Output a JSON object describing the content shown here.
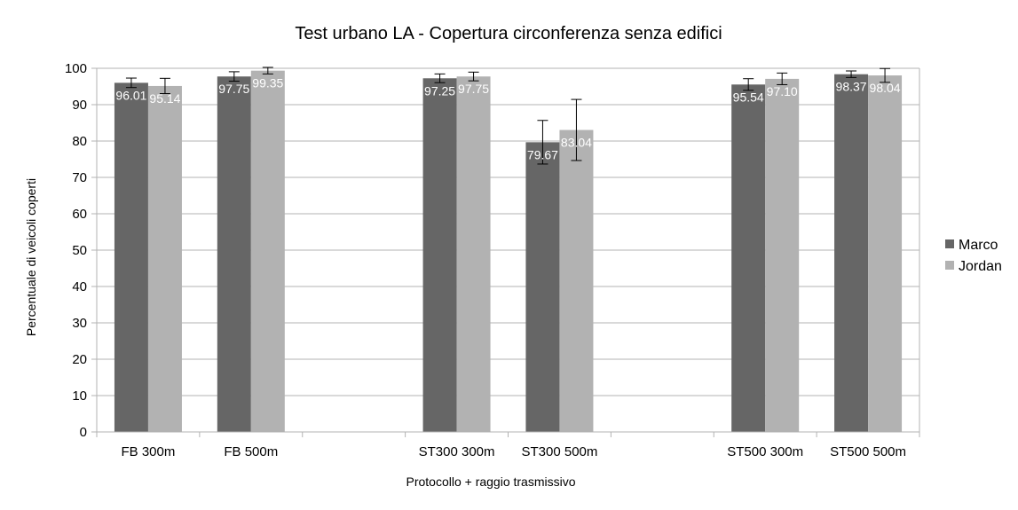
{
  "chart_data": {
    "type": "bar",
    "title": "Test urbano LA - Copertura circonferenza senza edifici",
    "xlabel": "Protocollo + raggio trasmissivo",
    "ylabel": "Percentuale di veicoli coperti",
    "ylim": [
      0,
      100
    ],
    "yticks": [
      0,
      10,
      20,
      30,
      40,
      50,
      60,
      70,
      80,
      90,
      100
    ],
    "grid": true,
    "legend": "right",
    "categories": [
      "FB 300m",
      "FB 500m",
      "",
      "ST300 300m",
      "ST300 500m",
      "",
      "ST500 300m",
      "ST500 500m"
    ],
    "series": [
      {
        "name": "Marco",
        "color": "#666666",
        "values": [
          96.01,
          97.75,
          null,
          97.25,
          79.67,
          null,
          95.54,
          98.37
        ],
        "labels": [
          "96.01",
          "97.75",
          "",
          "97.25",
          "79.67",
          "",
          "95.54",
          "98.37"
        ],
        "err_low": [
          1.3,
          1.3,
          null,
          1.2,
          6.0,
          null,
          1.6,
          0.9
        ],
        "err_high": [
          1.3,
          1.3,
          null,
          1.2,
          6.0,
          null,
          1.6,
          0.9
        ]
      },
      {
        "name": "Jordan",
        "color": "#b2b2b2",
        "values": [
          95.14,
          99.35,
          null,
          97.75,
          83.04,
          null,
          97.1,
          98.04
        ],
        "labels": [
          "95.14",
          "99.35",
          "",
          "97.75",
          "83.04",
          "",
          "97.10",
          "98.04"
        ],
        "err_low": [
          2.1,
          0.9,
          null,
          1.2,
          8.4,
          null,
          1.6,
          1.9
        ],
        "err_high": [
          2.1,
          0.9,
          null,
          1.2,
          8.4,
          null,
          1.6,
          1.9
        ]
      }
    ]
  }
}
